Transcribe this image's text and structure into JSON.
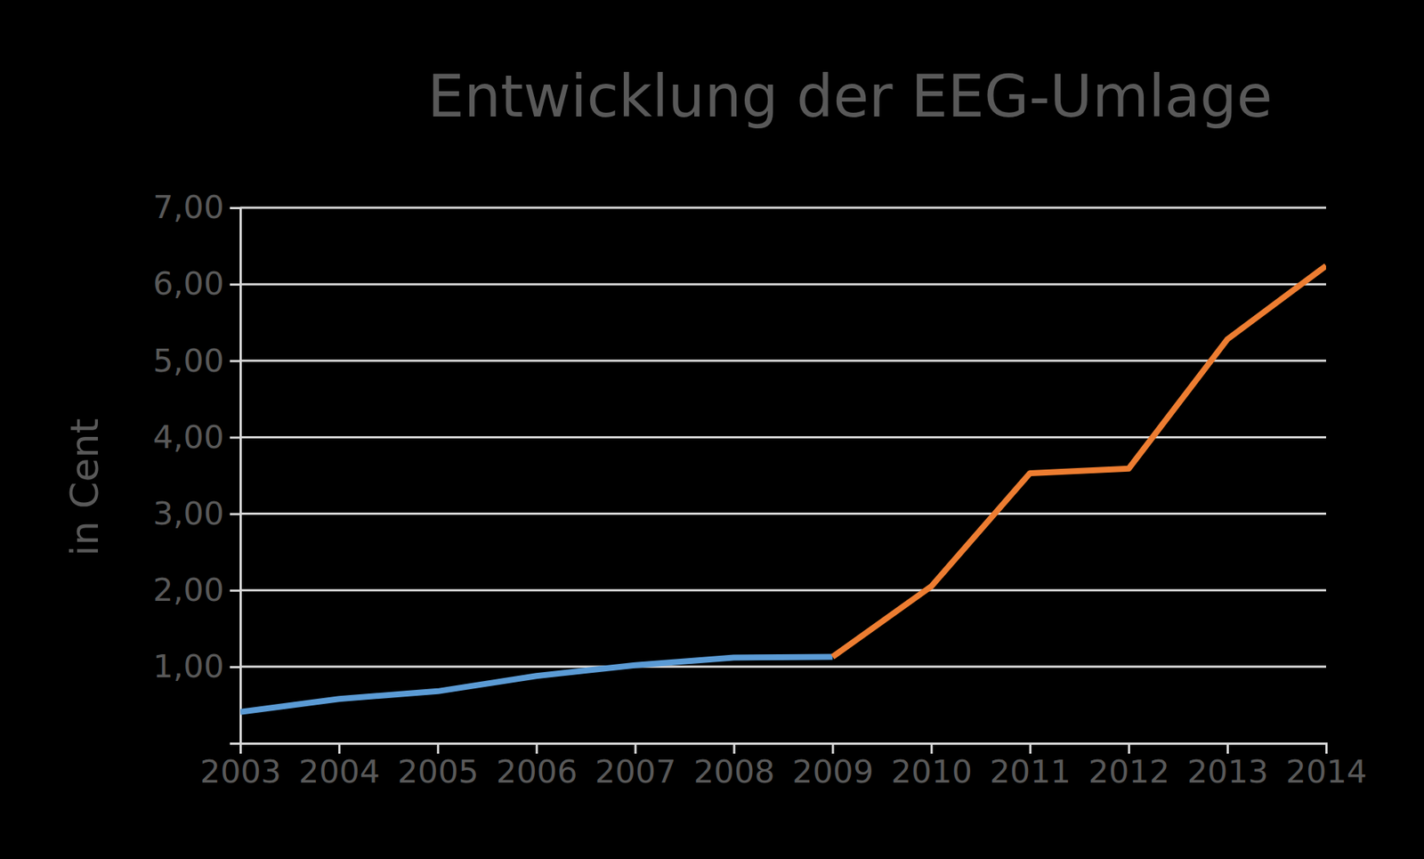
{
  "chart_data": {
    "type": "line",
    "title": "Entwicklung der EEG-Umlage",
    "y_label": "in Cent",
    "x": [
      2003,
      2004,
      2005,
      2006,
      2007,
      2008,
      2009,
      2010,
      2011,
      2012,
      2013,
      2014
    ],
    "xlim": [
      2003,
      2014
    ],
    "xticks": [
      2003,
      2004,
      2005,
      2006,
      2007,
      2008,
      2009,
      2010,
      2011,
      2012,
      2013,
      2014
    ],
    "ylim": [
      0,
      7
    ],
    "yticks": [
      {
        "value": 1,
        "label": "1,00"
      },
      {
        "value": 2,
        "label": "2,00"
      },
      {
        "value": 3,
        "label": "3,00"
      },
      {
        "value": 4,
        "label": "4,00"
      },
      {
        "value": 5,
        "label": "5,00"
      },
      {
        "value": 6,
        "label": "6,00"
      },
      {
        "value": 7,
        "label": "7,00"
      }
    ],
    "grid": true,
    "series": [
      {
        "color": "#5b9bd5",
        "values": [
          0.41,
          0.58,
          0.68,
          0.88,
          1.02,
          1.12,
          1.13,
          null,
          null,
          null,
          null,
          null
        ]
      },
      {
        "color": "#ed7d31",
        "values": [
          null,
          null,
          null,
          null,
          null,
          null,
          1.13,
          2.05,
          3.53,
          3.59,
          5.28,
          6.24
        ]
      }
    ]
  }
}
